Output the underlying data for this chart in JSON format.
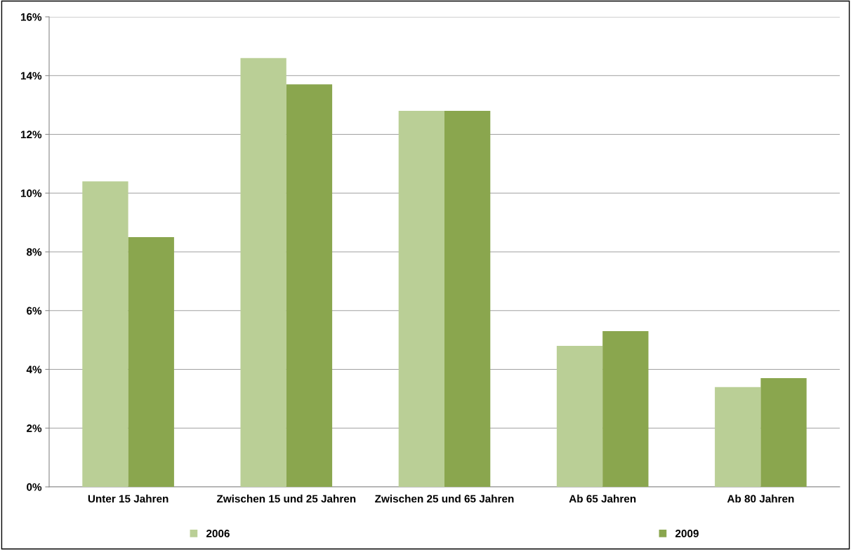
{
  "chart_data": {
    "type": "bar",
    "categories": [
      "Unter 15 Jahren",
      "Zwischen 15 und 25 Jahren",
      "Zwischen 25 und 65 Jahren",
      "Ab 65 Jahren",
      "Ab 80 Jahren"
    ],
    "series": [
      {
        "name": "2006",
        "color": "#bacf96",
        "values": [
          10.4,
          14.6,
          12.8,
          4.8,
          3.4
        ]
      },
      {
        "name": "2009",
        "color": "#8aa64e",
        "values": [
          8.5,
          13.7,
          12.8,
          5.3,
          3.7
        ]
      }
    ],
    "ylim": [
      0,
      16
    ],
    "yticks": [
      {
        "value": 0,
        "label": "0%"
      },
      {
        "value": 2,
        "label": "2%"
      },
      {
        "value": 4,
        "label": "4%"
      },
      {
        "value": 6,
        "label": "6%"
      },
      {
        "value": 8,
        "label": "8%"
      },
      {
        "value": 10,
        "label": "10%"
      },
      {
        "value": 12,
        "label": "12%"
      },
      {
        "value": 14,
        "label": "14%"
      },
      {
        "value": 16,
        "label": "16%"
      }
    ],
    "grid": "y",
    "legend": "bottom"
  }
}
